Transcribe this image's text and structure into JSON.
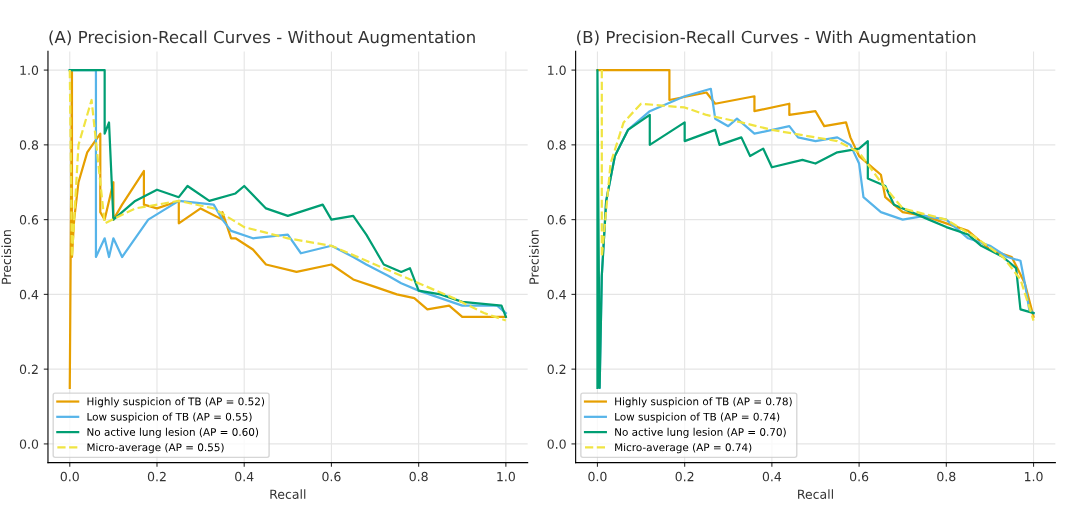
{
  "chart_data": [
    {
      "type": "line",
      "title": "(A) Precision-Recall Curves - Without Augmentation",
      "xlabel": "Recall",
      "ylabel": "Precision",
      "xlim": [
        -0.05,
        1.05
      ],
      "ylim": [
        -0.05,
        1.05
      ],
      "xticks": [
        {
          "value": 0,
          "label": "0.0"
        },
        {
          "value": 0.2,
          "label": "0.2"
        },
        {
          "value": 0.4,
          "label": "0.4"
        },
        {
          "value": 0.6,
          "label": "0.6"
        },
        {
          "value": 0.8,
          "label": "0.8"
        },
        {
          "value": 1,
          "label": "1.0"
        }
      ],
      "yticks": [
        {
          "value": 0,
          "label": "0.0"
        },
        {
          "value": 0.2,
          "label": "0.2"
        },
        {
          "value": 0.4,
          "label": "0.4"
        },
        {
          "value": 0.6,
          "label": "0.6"
        },
        {
          "value": 0.8,
          "label": "0.8"
        },
        {
          "value": 1,
          "label": "1.0"
        }
      ],
      "grid": true,
      "legend": "bottom left",
      "series": [
        {
          "name": "Highly suspicion of TB (AP = 0.52)",
          "color": "#e69f00",
          "line_style": "solid",
          "x": [
            0.0,
            0.005,
            0.005,
            0.01,
            0.02,
            0.04,
            0.07,
            0.07,
            0.08,
            0.1,
            0.1,
            0.12,
            0.17,
            0.17,
            0.2,
            0.25,
            0.25,
            0.3,
            0.35,
            0.35,
            0.37,
            0.38,
            0.42,
            0.45,
            0.52,
            0.6,
            0.65,
            0.7,
            0.75,
            0.79,
            0.82,
            0.87,
            0.9,
            1.0
          ],
          "values": [
            0.15,
            1.0,
            0.5,
            0.6,
            0.7,
            0.78,
            0.83,
            0.62,
            0.6,
            0.7,
            0.6,
            0.64,
            0.73,
            0.64,
            0.63,
            0.65,
            0.59,
            0.63,
            0.6,
            0.62,
            0.55,
            0.55,
            0.52,
            0.48,
            0.46,
            0.48,
            0.44,
            0.42,
            0.4,
            0.39,
            0.36,
            0.37,
            0.34,
            0.34
          ]
        },
        {
          "name": "Low suspicion of TB (AP = 0.55)",
          "color": "#56b4e9",
          "line_style": "solid",
          "x": [
            0.0,
            0.06,
            0.06,
            0.08,
            0.09,
            0.1,
            0.12,
            0.18,
            0.25,
            0.33,
            0.35,
            0.37,
            0.42,
            0.5,
            0.53,
            0.6,
            0.65,
            0.68,
            0.73,
            0.76,
            0.8,
            0.85,
            0.9,
            0.98,
            1.0
          ],
          "values": [
            1.0,
            1.0,
            0.5,
            0.55,
            0.5,
            0.55,
            0.5,
            0.6,
            0.65,
            0.64,
            0.6,
            0.57,
            0.55,
            0.56,
            0.51,
            0.53,
            0.5,
            0.48,
            0.45,
            0.43,
            0.41,
            0.39,
            0.37,
            0.37,
            0.35
          ]
        },
        {
          "name": "No active lung lesion (AP = 0.60)",
          "color": "#009e73",
          "line_style": "solid",
          "x": [
            0.0,
            0.08,
            0.08,
            0.09,
            0.1,
            0.15,
            0.2,
            0.25,
            0.27,
            0.32,
            0.38,
            0.4,
            0.45,
            0.5,
            0.58,
            0.6,
            0.65,
            0.68,
            0.7,
            0.72,
            0.76,
            0.78,
            0.8,
            0.85,
            0.9,
            0.99,
            1.0
          ],
          "values": [
            1.0,
            1.0,
            0.83,
            0.86,
            0.6,
            0.65,
            0.68,
            0.66,
            0.69,
            0.65,
            0.67,
            0.69,
            0.63,
            0.61,
            0.64,
            0.6,
            0.61,
            0.56,
            0.52,
            0.48,
            0.46,
            0.47,
            0.41,
            0.4,
            0.38,
            0.37,
            0.34
          ]
        },
        {
          "name": "Micro-average (AP = 0.55)",
          "color": "#f0e442",
          "line_style": "dashed",
          "x": [
            0.0,
            0.005,
            0.02,
            0.05,
            0.08,
            0.15,
            0.25,
            0.33,
            0.4,
            0.5,
            0.6,
            0.7,
            0.8,
            0.88,
            0.95,
            1.0
          ],
          "values": [
            1.0,
            0.5,
            0.8,
            0.92,
            0.59,
            0.63,
            0.65,
            0.63,
            0.58,
            0.55,
            0.53,
            0.48,
            0.43,
            0.39,
            0.35,
            0.33
          ]
        }
      ]
    },
    {
      "type": "line",
      "title": "(B) Precision-Recall Curves - With Augmentation",
      "xlabel": "Recall",
      "ylabel": "Precision",
      "xlim": [
        -0.05,
        1.05
      ],
      "ylim": [
        -0.05,
        1.05
      ],
      "xticks": [
        {
          "value": 0,
          "label": "0.0"
        },
        {
          "value": 0.2,
          "label": "0.2"
        },
        {
          "value": 0.4,
          "label": "0.4"
        },
        {
          "value": 0.6,
          "label": "0.6"
        },
        {
          "value": 0.8,
          "label": "0.8"
        },
        {
          "value": 1,
          "label": "1.0"
        }
      ],
      "yticks": [
        {
          "value": 0,
          "label": "0.0"
        },
        {
          "value": 0.2,
          "label": "0.2"
        },
        {
          "value": 0.4,
          "label": "0.4"
        },
        {
          "value": 0.6,
          "label": "0.6"
        },
        {
          "value": 0.8,
          "label": "0.8"
        },
        {
          "value": 1,
          "label": "1.0"
        }
      ],
      "grid": true,
      "legend": "bottom left",
      "series": [
        {
          "name": "Highly suspicion of TB (AP = 0.78)",
          "color": "#e69f00",
          "line_style": "solid",
          "x": [
            0.0,
            0.165,
            0.165,
            0.25,
            0.27,
            0.36,
            0.36,
            0.44,
            0.44,
            0.5,
            0.52,
            0.57,
            0.58,
            0.6,
            0.63,
            0.65,
            0.66,
            0.7,
            0.75,
            0.8,
            0.85,
            0.9,
            0.95,
            0.98,
            1.0
          ],
          "values": [
            1.0,
            1.0,
            0.92,
            0.94,
            0.91,
            0.93,
            0.89,
            0.91,
            0.88,
            0.89,
            0.85,
            0.86,
            0.82,
            0.77,
            0.74,
            0.72,
            0.66,
            0.62,
            0.61,
            0.59,
            0.57,
            0.52,
            0.5,
            0.43,
            0.34
          ]
        },
        {
          "name": "Low suspicion of TB (AP = 0.74)",
          "color": "#56b4e9",
          "line_style": "solid",
          "x": [
            0.005,
            0.01,
            0.02,
            0.04,
            0.07,
            0.12,
            0.2,
            0.26,
            0.27,
            0.3,
            0.32,
            0.36,
            0.44,
            0.46,
            0.5,
            0.55,
            0.58,
            0.6,
            0.61,
            0.65,
            0.7,
            0.75,
            0.8,
            0.85,
            0.9,
            0.94,
            0.97,
            0.98,
            0.99,
            1.0
          ],
          "values": [
            0.15,
            0.45,
            0.65,
            0.77,
            0.84,
            0.89,
            0.93,
            0.95,
            0.87,
            0.85,
            0.87,
            0.83,
            0.85,
            0.82,
            0.81,
            0.82,
            0.8,
            0.75,
            0.66,
            0.62,
            0.6,
            0.61,
            0.6,
            0.55,
            0.53,
            0.5,
            0.49,
            0.43,
            0.36,
            0.35
          ]
        },
        {
          "name": "No active lung lesion (AP = 0.70)",
          "color": "#009e73",
          "line_style": "solid",
          "x": [
            0.0,
            0.0,
            0.005,
            0.01,
            0.02,
            0.04,
            0.07,
            0.12,
            0.12,
            0.2,
            0.2,
            0.27,
            0.28,
            0.33,
            0.35,
            0.38,
            0.4,
            0.47,
            0.5,
            0.55,
            0.6,
            0.62,
            0.62,
            0.66,
            0.68,
            0.72,
            0.76,
            0.8,
            0.85,
            0.88,
            0.93,
            0.96,
            0.97,
            1.0
          ],
          "values": [
            0.15,
            1.0,
            0.15,
            0.45,
            0.65,
            0.77,
            0.84,
            0.88,
            0.8,
            0.86,
            0.81,
            0.84,
            0.8,
            0.82,
            0.77,
            0.79,
            0.74,
            0.76,
            0.75,
            0.78,
            0.79,
            0.81,
            0.71,
            0.69,
            0.64,
            0.62,
            0.6,
            0.58,
            0.56,
            0.53,
            0.5,
            0.47,
            0.36,
            0.35
          ]
        },
        {
          "name": "Micro-average (AP = 0.74)",
          "color": "#f0e442",
          "line_style": "dashed",
          "x": [
            0.01,
            0.01,
            0.03,
            0.06,
            0.1,
            0.2,
            0.25,
            0.33,
            0.4,
            0.5,
            0.55,
            0.6,
            0.65,
            0.7,
            0.8,
            0.87,
            0.93,
            0.97,
            1.0
          ],
          "values": [
            1.0,
            0.5,
            0.75,
            0.86,
            0.91,
            0.9,
            0.88,
            0.86,
            0.84,
            0.82,
            0.81,
            0.78,
            0.7,
            0.63,
            0.6,
            0.55,
            0.5,
            0.44,
            0.33
          ]
        }
      ]
    }
  ]
}
